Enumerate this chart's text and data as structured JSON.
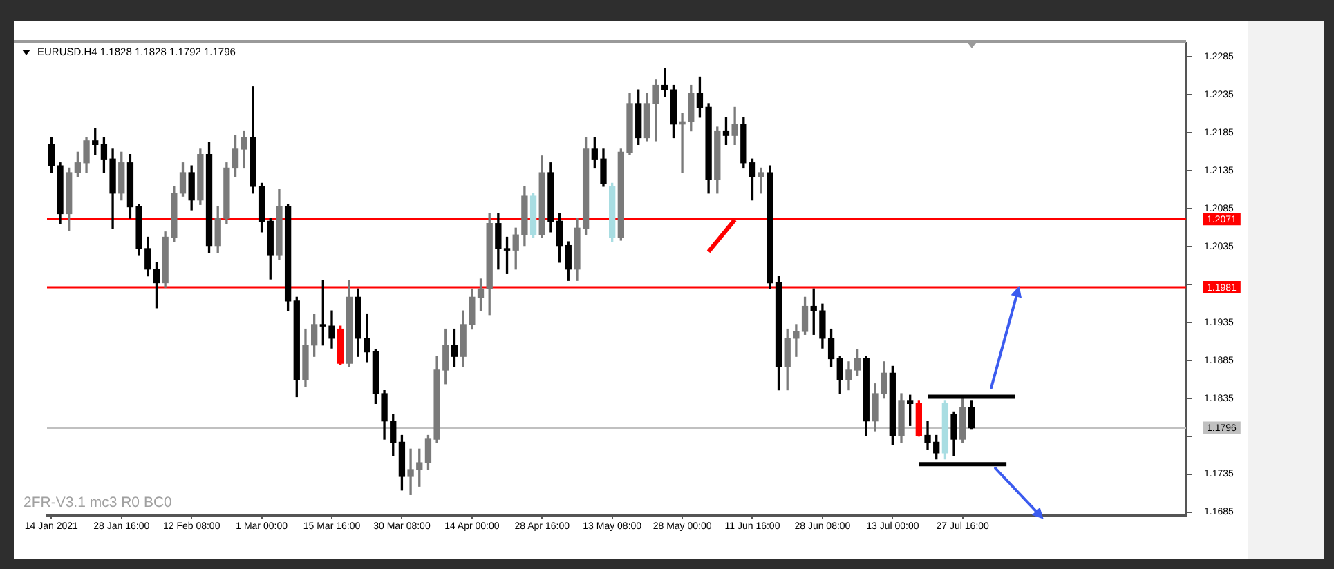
{
  "chart_data": {
    "type": "candlestick",
    "title": "EURUSD.H4 1.1828 1.1828 1.1792 1.1796",
    "annotations": [
      "2FR-V3.1 mc3 R0 BC0"
    ],
    "categories": [
      "14 Jan 2021",
      null,
      null,
      null,
      null,
      null,
      null,
      null,
      "28 Jan 16:00",
      null,
      null,
      null,
      null,
      null,
      null,
      null,
      "12 Feb 08:00",
      null,
      null,
      null,
      null,
      null,
      null,
      null,
      "1 Mar 00:00",
      null,
      null,
      null,
      null,
      null,
      null,
      null,
      "15 Mar 16:00",
      null,
      null,
      null,
      null,
      null,
      null,
      null,
      "30 Mar 08:00",
      null,
      null,
      null,
      null,
      null,
      null,
      null,
      "14 Apr 00:00",
      null,
      null,
      null,
      null,
      null,
      null,
      null,
      "28 Apr 16:00",
      null,
      null,
      null,
      null,
      null,
      null,
      null,
      "13 May 08:00",
      null,
      null,
      null,
      null,
      null,
      null,
      null,
      "28 May 00:00",
      null,
      null,
      null,
      null,
      null,
      null,
      null,
      "11 Jun 16:00",
      null,
      null,
      null,
      null,
      null,
      null,
      null,
      "28 Jun 08:00",
      null,
      null,
      null,
      null,
      null,
      null,
      null,
      "13 Jul 00:00",
      null,
      null,
      null,
      null,
      null,
      null,
      null,
      "27 Jul 16:00",
      null,
      null,
      null,
      null,
      null,
      null,
      null,
      null,
      null,
      null,
      null,
      null,
      null,
      null,
      null,
      null,
      null,
      null,
      null,
      null,
      null,
      null,
      null,
      null,
      null
    ],
    "ohlc": [
      [
        1.2169,
        1.2178,
        1.2132,
        1.2141
      ],
      [
        1.2141,
        1.2145,
        1.2065,
        1.2078
      ],
      [
        1.2078,
        1.2138,
        1.2056,
        1.2132
      ],
      [
        1.2132,
        1.2159,
        1.2127,
        1.2145
      ],
      [
        1.2145,
        1.2178,
        1.2132,
        1.2174
      ],
      [
        1.2174,
        1.219,
        1.2156,
        1.2169
      ],
      [
        1.2169,
        1.2178,
        1.2132,
        1.215
      ],
      [
        1.215,
        1.2163,
        1.2059,
        1.2105
      ],
      [
        1.2105,
        1.2159,
        1.2096,
        1.2145
      ],
      [
        1.2145,
        1.2156,
        1.2072,
        1.2087
      ],
      [
        1.2087,
        1.209,
        1.2023,
        1.2032
      ],
      [
        1.2032,
        1.2047,
        1.1996,
        1.2005
      ],
      [
        1.2005,
        1.2014,
        1.1954,
        1.1987
      ],
      [
        1.1987,
        1.2054,
        1.1981,
        1.2047
      ],
      [
        1.2047,
        1.2114,
        1.2041,
        1.2105
      ],
      [
        1.2105,
        1.2145,
        1.2101,
        1.2132
      ],
      [
        1.2132,
        1.2141,
        1.2083,
        1.2096
      ],
      [
        1.2096,
        1.2163,
        1.209,
        1.2156
      ],
      [
        1.2156,
        1.2172,
        1.2027,
        1.2036
      ],
      [
        1.2036,
        1.2087,
        1.2027,
        1.2072
      ],
      [
        1.2072,
        1.2145,
        1.2065,
        1.2138
      ],
      [
        1.2138,
        1.2181,
        1.2127,
        1.2163
      ],
      [
        1.2163,
        1.2187,
        1.2138,
        1.2178
      ],
      [
        1.2178,
        1.2245,
        1.2105,
        1.2114
      ],
      [
        1.2114,
        1.2118,
        1.2054,
        1.2068
      ],
      [
        1.2068,
        1.2072,
        1.1992,
        1.2023
      ],
      [
        1.2023,
        1.211,
        1.2018,
        1.2087
      ],
      [
        1.2087,
        1.209,
        1.195,
        1.1963
      ],
      [
        1.1963,
        1.1968,
        1.1837,
        1.1859
      ],
      [
        1.1859,
        1.1926,
        1.185,
        1.1905
      ],
      [
        1.1905,
        1.1945,
        1.189,
        1.1932
      ],
      [
        1.1932,
        1.199,
        1.1905,
        1.193
      ],
      [
        1.193,
        1.195,
        1.1901,
        1.1914
      ],
      [
        1.1926,
        1.193,
        1.1879,
        1.1881
      ],
      [
        1.1881,
        1.199,
        1.1877,
        1.1968
      ],
      [
        1.1968,
        1.1979,
        1.189,
        1.1914
      ],
      [
        1.1914,
        1.1946,
        1.1883,
        1.1896
      ],
      [
        1.1896,
        1.1899,
        1.1828,
        1.1841
      ],
      [
        1.1841,
        1.1845,
        1.1781,
        1.1805
      ],
      [
        1.1805,
        1.1814,
        1.1759,
        1.1777
      ],
      [
        1.1777,
        1.1786,
        1.1714,
        1.1732
      ],
      [
        1.1732,
        1.1768,
        1.1708,
        1.1741
      ],
      [
        1.1741,
        1.1768,
        1.1719,
        1.175
      ],
      [
        1.175,
        1.1786,
        1.1741,
        1.1781
      ],
      [
        1.1781,
        1.189,
        1.1777,
        1.1872
      ],
      [
        1.1872,
        1.1926,
        1.1854,
        1.1905
      ],
      [
        1.1905,
        1.1926,
        1.1877,
        1.189
      ],
      [
        1.189,
        1.195,
        1.1877,
        1.1932
      ],
      [
        1.1932,
        1.1979,
        1.1926,
        1.1968
      ],
      [
        1.1968,
        1.1992,
        1.195,
        1.1979
      ],
      [
        1.1979,
        1.2078,
        1.1945,
        1.2065
      ],
      [
        1.2065,
        1.2078,
        1.2005,
        1.2032
      ],
      [
        1.2032,
        1.2047,
        1.1999,
        1.203
      ],
      [
        1.203,
        1.2059,
        1.2005,
        1.205
      ],
      [
        1.205,
        1.2114,
        1.2036,
        1.2101
      ],
      [
        1.205,
        1.2105,
        1.2047,
        1.2101
      ],
      [
        1.205,
        1.2154,
        1.2047,
        1.2132
      ],
      [
        1.2132,
        1.2145,
        1.2054,
        1.2068
      ],
      [
        1.2068,
        1.2078,
        1.2014,
        1.2036
      ],
      [
        1.2036,
        1.2041,
        1.199,
        1.2005
      ],
      [
        1.2005,
        1.2072,
        1.199,
        1.2059
      ],
      [
        1.2059,
        1.2178,
        1.205,
        1.2163
      ],
      [
        1.2163,
        1.2178,
        1.2138,
        1.215
      ],
      [
        1.215,
        1.2163,
        1.2114,
        1.2118
      ],
      [
        1.2047,
        1.2118,
        1.2041,
        1.2114
      ],
      [
        1.2047,
        1.2163,
        1.2043,
        1.2159
      ],
      [
        1.2159,
        1.2236,
        1.2156,
        1.2223
      ],
      [
        1.2223,
        1.2241,
        1.2169,
        1.2178
      ],
      [
        1.2178,
        1.2236,
        1.2174,
        1.2223
      ],
      [
        1.2223,
        1.2254,
        1.2174,
        1.2247
      ],
      [
        1.2247,
        1.2269,
        1.2232,
        1.2241
      ],
      [
        1.2241,
        1.2247,
        1.2178,
        1.2196
      ],
      [
        1.2196,
        1.221,
        1.2132,
        1.2199
      ],
      [
        1.2199,
        1.2247,
        1.2187,
        1.2236
      ],
      [
        1.2236,
        1.2258,
        1.2205,
        1.2218
      ],
      [
        1.2218,
        1.2223,
        1.2105,
        1.2123
      ],
      [
        1.2123,
        1.2192,
        1.2105,
        1.2187
      ],
      [
        1.2187,
        1.2205,
        1.2169,
        1.2181
      ],
      [
        1.2181,
        1.2218,
        1.2169,
        1.2196
      ],
      [
        1.2196,
        1.2205,
        1.2138,
        1.2145
      ],
      [
        1.2145,
        1.215,
        1.2096,
        1.2127
      ],
      [
        1.2127,
        1.2138,
        1.2105,
        1.2132
      ],
      [
        1.2132,
        1.2141,
        1.1979,
        1.1987
      ],
      [
        1.1987,
        1.1996,
        1.1846,
        1.1877
      ],
      [
        1.1877,
        1.1926,
        1.1846,
        1.1914
      ],
      [
        1.1914,
        1.1932,
        1.189,
        1.1923
      ],
      [
        1.1923,
        1.1968,
        1.1919,
        1.1956
      ],
      [
        1.1956,
        1.1979,
        1.1919,
        1.195
      ],
      [
        1.195,
        1.1959,
        1.1901,
        1.1914
      ],
      [
        1.1914,
        1.1926,
        1.1877,
        1.1887
      ],
      [
        1.1887,
        1.189,
        1.1841,
        1.1859
      ],
      [
        1.1859,
        1.1883,
        1.1846,
        1.1872
      ],
      [
        1.1872,
        1.1899,
        1.1865,
        1.1887
      ],
      [
        1.1887,
        1.189,
        1.1786,
        1.1805
      ],
      [
        1.1805,
        1.1854,
        1.1792,
        1.1841
      ],
      [
        1.1841,
        1.1883,
        1.1835,
        1.1868
      ],
      [
        1.1868,
        1.1877,
        1.1774,
        1.1786
      ],
      [
        1.1786,
        1.1841,
        1.1777,
        1.1832
      ],
      [
        1.1832,
        1.1839,
        1.1799,
        1.1828
      ],
      [
        1.1828,
        1.1832,
        1.1785,
        1.1786
      ],
      [
        1.1786,
        1.1805,
        1.1768,
        1.1777
      ],
      [
        1.1777,
        1.1786,
        1.1755,
        1.1763
      ],
      [
        1.1763,
        1.1832,
        1.1755,
        1.1828
      ],
      [
        1.1814,
        1.1817,
        1.1759,
        1.1781
      ],
      [
        1.1781,
        1.1835,
        1.1777,
        1.1823
      ],
      [
        1.1823,
        1.1832,
        1.1795,
        1.1796
      ],
      null,
      null,
      null,
      null,
      null,
      null,
      null,
      null,
      null,
      null,
      null,
      null,
      null,
      null,
      null,
      null,
      null,
      null,
      null,
      null,
      null,
      null,
      null,
      null
    ],
    "colors": [
      "#000000",
      "#000000",
      "#7a7a7a",
      "#7a7a7a",
      "#7a7a7a",
      "#000000",
      "#000000",
      "#000000",
      "#7a7a7a",
      "#000000",
      "#000000",
      "#000000",
      "#000000",
      "#7a7a7a",
      "#7a7a7a",
      "#7a7a7a",
      "#000000",
      "#7a7a7a",
      "#000000",
      "#7a7a7a",
      "#7a7a7a",
      "#7a7a7a",
      "#7a7a7a",
      "#000000",
      "#000000",
      "#000000",
      "#7a7a7a",
      "#000000",
      "#000000",
      "#7a7a7a",
      "#7a7a7a",
      "#000000",
      "#000000",
      "#ff0000",
      "#7a7a7a",
      "#000000",
      "#000000",
      "#000000",
      "#000000",
      "#000000",
      "#000000",
      "#7a7a7a",
      "#7a7a7a",
      "#7a7a7a",
      "#7a7a7a",
      "#7a7a7a",
      "#000000",
      "#7a7a7a",
      "#7a7a7a",
      "#7a7a7a",
      "#7a7a7a",
      "#000000",
      "#000000",
      "#7a7a7a",
      "#7a7a7a",
      "#a8dde2",
      "#7a7a7a",
      "#000000",
      "#000000",
      "#000000",
      "#7a7a7a",
      "#7a7a7a",
      "#000000",
      "#000000",
      "#a8dde2",
      "#7a7a7a",
      "#7a7a7a",
      "#000000",
      "#7a7a7a",
      "#7a7a7a",
      "#000000",
      "#000000",
      "#7a7a7a",
      "#7a7a7a",
      "#000000",
      "#000000",
      "#7a7a7a",
      "#000000",
      "#7a7a7a",
      "#000000",
      "#000000",
      "#7a7a7a",
      "#000000",
      "#000000",
      "#7a7a7a",
      "#7a7a7a",
      "#7a7a7a",
      "#000000",
      "#000000",
      "#000000",
      "#000000",
      "#7a7a7a",
      "#7a7a7a",
      "#000000",
      "#7a7a7a",
      "#7a7a7a",
      "#000000",
      "#7a7a7a",
      "#000000",
      "#ff0000",
      "#000000",
      "#000000",
      "#a8dde2",
      "#000000",
      "#7a7a7a",
      "#000000",
      null,
      null,
      null,
      null,
      null,
      null,
      null,
      null,
      null,
      null,
      null,
      null,
      null,
      null,
      null,
      null,
      null,
      null,
      null,
      null,
      null,
      null,
      null,
      null
    ],
    "series": [
      {
        "type": "line",
        "color": "#000000",
        "values": [
          null,
          null,
          null,
          null,
          null,
          null,
          null,
          null,
          null,
          null,
          null,
          null,
          null,
          null,
          null,
          null,
          null,
          null,
          null,
          null,
          null,
          null,
          null,
          null,
          null,
          null,
          null,
          null,
          null,
          null,
          null,
          null,
          null,
          null,
          null,
          null,
          null,
          null,
          null,
          null,
          null,
          null,
          null,
          null,
          null,
          null,
          null,
          null,
          null,
          null,
          null,
          null,
          null,
          null,
          null,
          null,
          null,
          null,
          null,
          null,
          null,
          null,
          null,
          null,
          null,
          null,
          null,
          null,
          null,
          null,
          null,
          null,
          null,
          null,
          null,
          null,
          null,
          null,
          null,
          null,
          null,
          null,
          null,
          null,
          null,
          null,
          null,
          null,
          null,
          null,
          null,
          null,
          null,
          null,
          null,
          null,
          null,
          null,
          null,
          null,
          1.1837,
          null,
          null,
          null,
          null,
          null,
          null,
          null,
          null,
          null,
          1.1837,
          null,
          null,
          null,
          null,
          null,
          null,
          null,
          null,
          null,
          null,
          null,
          null,
          null,
          null,
          null,
          null,
          null,
          null,
          null
        ]
      },
      {
        "type": "line",
        "color": "#000000",
        "values": [
          null,
          null,
          null,
          null,
          null,
          null,
          null,
          null,
          null,
          null,
          null,
          null,
          null,
          null,
          null,
          null,
          null,
          null,
          null,
          null,
          null,
          null,
          null,
          null,
          null,
          null,
          null,
          null,
          null,
          null,
          null,
          null,
          null,
          null,
          null,
          null,
          null,
          null,
          null,
          null,
          null,
          null,
          null,
          null,
          null,
          null,
          null,
          null,
          null,
          null,
          null,
          null,
          null,
          null,
          null,
          null,
          null,
          null,
          null,
          null,
          null,
          null,
          null,
          null,
          null,
          null,
          null,
          null,
          null,
          null,
          null,
          null,
          null,
          null,
          null,
          null,
          null,
          null,
          null,
          null,
          null,
          null,
          null,
          null,
          null,
          null,
          null,
          null,
          null,
          null,
          null,
          null,
          null,
          null,
          null,
          null,
          null,
          null,
          null,
          1.1748,
          null,
          null,
          null,
          null,
          null,
          null,
          null,
          null,
          null,
          1.1748,
          null,
          null,
          null,
          null,
          null,
          null,
          null,
          null,
          null,
          null,
          null,
          null,
          null,
          null,
          null,
          null,
          null,
          null,
          null,
          null
        ]
      },
      {
        "type": "line",
        "color": "#ff0000",
        "values": [
          null,
          null,
          null,
          null,
          null,
          null,
          null,
          null,
          null,
          null,
          null,
          null,
          null,
          null,
          null,
          null,
          null,
          null,
          null,
          null,
          null,
          null,
          null,
          null,
          null,
          null,
          null,
          null,
          null,
          null,
          null,
          null,
          null,
          null,
          null,
          null,
          null,
          null,
          null,
          null,
          null,
          null,
          null,
          null,
          null,
          null,
          null,
          null,
          null,
          null,
          null,
          null,
          null,
          null,
          null,
          null,
          null,
          null,
          null,
          null,
          null,
          null,
          null,
          null,
          null,
          null,
          null,
          null,
          null,
          null,
          null,
          null,
          null,
          null,
          null,
          1.2028,
          null,
          null,
          1.207,
          null,
          null,
          null,
          null,
          null,
          null,
          null,
          null,
          null,
          null,
          null,
          null,
          null,
          null,
          null,
          null,
          null,
          null,
          null,
          null,
          null,
          null,
          null,
          null,
          null,
          null,
          null,
          null,
          null,
          null,
          null,
          null,
          null,
          null,
          null,
          null,
          null,
          null,
          null,
          null,
          null,
          null,
          null,
          null,
          null,
          null,
          null,
          null,
          null,
          null,
          null
        ]
      }
    ],
    "ylim": [
      1.1681,
      1.2303
    ],
    "yticks": [
      1.1685,
      1.1735,
      {
        "value": 1.1785,
        "label": null
      },
      1.1835,
      1.1885,
      1.1935,
      {
        "value": 1.1985,
        "label": null
      },
      1.2035,
      1.2085,
      1.2135,
      1.2185,
      1.2235,
      1.2285
    ],
    "ref_lines": [
      {
        "axis": "y",
        "value": 1.2071,
        "label": "1.2071",
        "color": "#ff0000"
      },
      {
        "axis": "y",
        "value": 1.1981,
        "label": "1.1981",
        "color": "#ff0000"
      },
      {
        "axis": "y",
        "value": 1.1796,
        "label": "1.1796",
        "color": "#c0c0c0"
      }
    ]
  }
}
